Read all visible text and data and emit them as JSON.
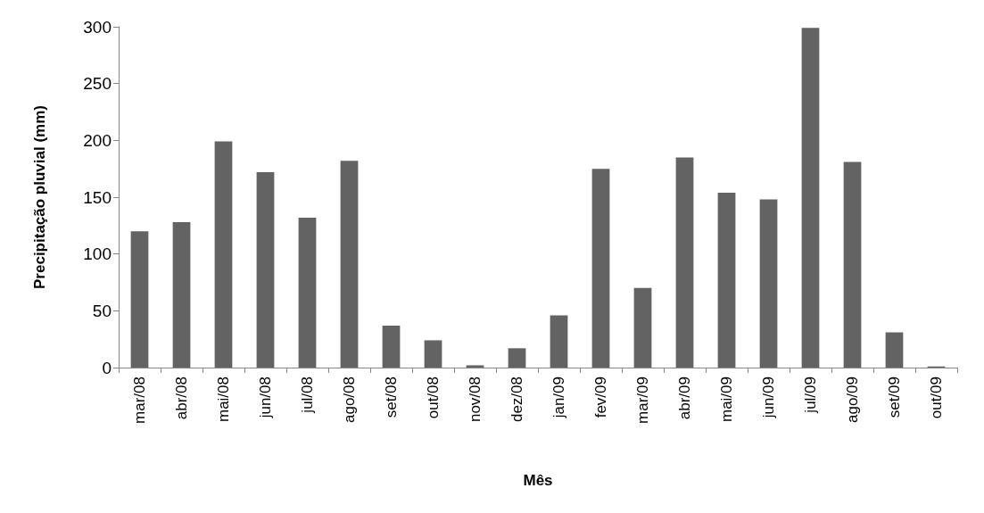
{
  "chart_data": {
    "type": "bar",
    "xlabel": "Mês",
    "ylabel": "Precipitação pluvial (mm)",
    "categories": [
      "mar/08",
      "abr/08",
      "mai/08",
      "jun/08",
      "jul/08",
      "ago/08",
      "set/08",
      "out/08",
      "nov/08",
      "dez/08",
      "jan/09",
      "fev/09",
      "mar/09",
      "abr/09",
      "mai/09",
      "jun/09",
      "jul/09",
      "ago/09",
      "set/09",
      "out/09"
    ],
    "values": [
      120,
      128,
      199,
      172,
      132,
      182,
      37,
      24,
      2,
      17,
      46,
      175,
      70,
      185,
      154,
      148,
      299,
      181,
      31,
      1
    ],
    "color": "#636363",
    "ylim": [
      0,
      300
    ],
    "yticks": [
      0,
      50,
      100,
      150,
      200,
      250,
      300
    ],
    "grid": false
  }
}
